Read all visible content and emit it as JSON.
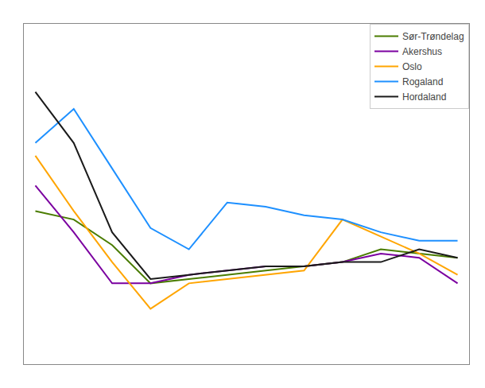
{
  "chart_data": {
    "type": "line",
    "x": [
      0,
      1,
      2,
      3,
      4,
      5,
      6,
      7,
      8,
      9,
      10,
      11
    ],
    "series": [
      {
        "name": "Sør-Trøndelag",
        "color": "#4a7c00",
        "values": [
          13,
          12,
          9,
          4.5,
          5,
          5.5,
          6,
          6.5,
          7,
          8.5,
          8,
          7.5
        ]
      },
      {
        "name": "Akershus",
        "color": "#7b00a0",
        "values": [
          16,
          10.5,
          4.5,
          4.5,
          5.5,
          6,
          6.5,
          6.5,
          7,
          8,
          7.5,
          4.5
        ]
      },
      {
        "name": "Oslo",
        "color": "#ffa500",
        "values": [
          19.5,
          13,
          7,
          1.5,
          4.5,
          5,
          5.5,
          6,
          12,
          10,
          8,
          5.5
        ]
      },
      {
        "name": "Rogaland",
        "color": "#1e90ff",
        "values": [
          21,
          25,
          18,
          11,
          8.5,
          14,
          13.5,
          12.5,
          12,
          10.5,
          9.5,
          9.5
        ]
      },
      {
        "name": "Hordaland",
        "color": "#1a1a1a",
        "values": [
          27,
          21,
          10.5,
          5,
          5.5,
          6,
          6.5,
          6.5,
          7,
          7,
          8.5,
          7.5
        ]
      }
    ],
    "xlim": [
      -0.3,
      11.3
    ],
    "ylim": [
      -5,
      35
    ],
    "grid": false,
    "tick_labels": false,
    "legend": "upper right"
  }
}
